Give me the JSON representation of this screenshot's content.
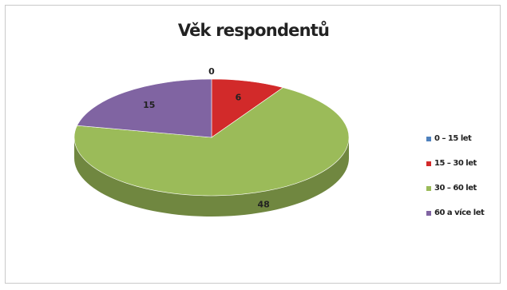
{
  "chart_data": {
    "type": "pie",
    "title": "Věk respondentů",
    "categories": [
      "0 – 15 let",
      "15 – 30 let",
      "30 – 60 let",
      "60 a více let"
    ],
    "values": [
      0,
      6,
      48,
      15
    ],
    "value_labels": [
      "0",
      "6",
      "48",
      "15"
    ],
    "colors": [
      "#4f81bd",
      "#d22a2a",
      "#9bbb59",
      "#8064a2"
    ],
    "legend_position": "right",
    "style": "3d"
  }
}
